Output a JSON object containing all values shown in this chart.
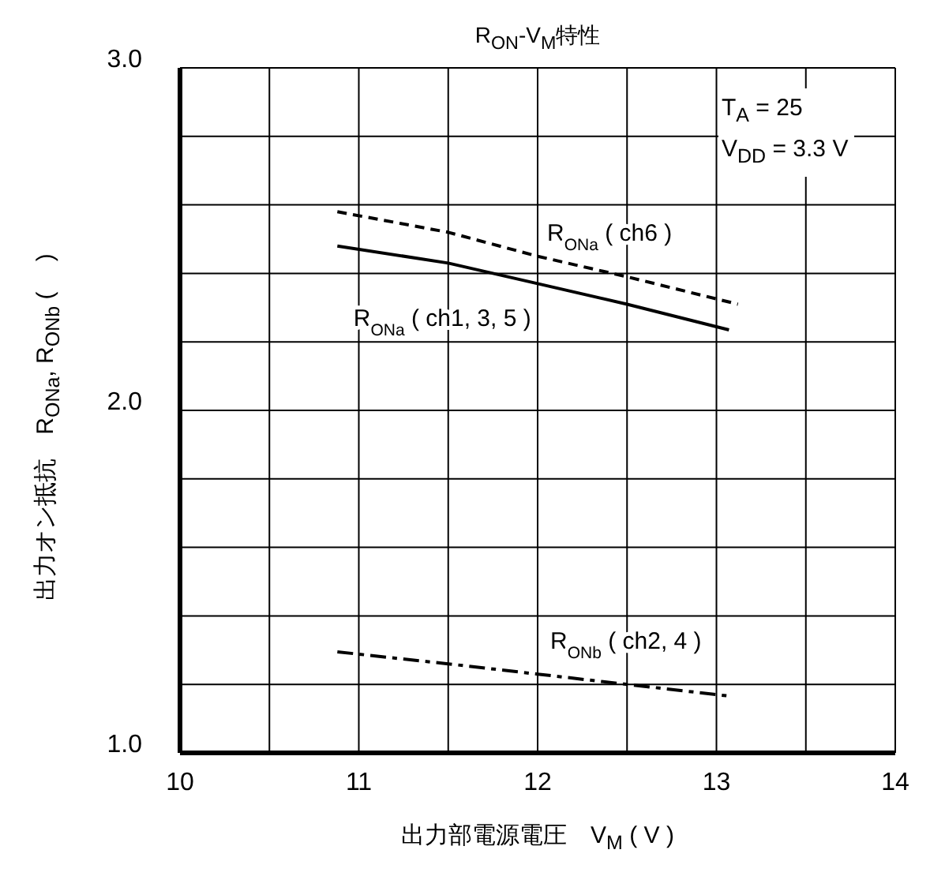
{
  "chart_data": {
    "type": "line",
    "title": "R$_{ON}$-V$_{M}$特性",
    "xlabel": "出力部電源電圧　V$_{M}$ ( V )",
    "ylabel": "出力オン抵抗　R$_{ONa}$, R$_{ONb}$ (　 )",
    "annotations": [
      "T$_{A}$ = 25",
      "V$_{DD}$ = 3.3 V"
    ],
    "xlim": [
      10,
      14
    ],
    "xticks": [
      10,
      {
        "value": 10.5,
        "label": null
      },
      11,
      {
        "value": 11.5,
        "label": null
      },
      12,
      {
        "value": 12.5,
        "label": null
      },
      13,
      {
        "value": 13.5,
        "label": null
      },
      14
    ],
    "ylim": [
      1,
      3
    ],
    "yticks": [
      {
        "value": 1,
        "label": "1.0"
      },
      {
        "value": 1.2,
        "label": null
      },
      {
        "value": 1.4,
        "label": null
      },
      {
        "value": 1.6,
        "label": null
      },
      {
        "value": 1.8,
        "label": null
      },
      {
        "value": 2,
        "label": "2.0"
      },
      {
        "value": 2.2,
        "label": null
      },
      {
        "value": 2.4,
        "label": null
      },
      {
        "value": 2.6,
        "label": null
      },
      {
        "value": 2.8,
        "label": null
      },
      {
        "value": 3,
        "label": "3.0"
      }
    ],
    "grid": true,
    "legend": false,
    "marker": "none",
    "series": [
      {
        "name": "R$_{ONa}$ ( ch1, 3, 5 )",
        "color": "#000000",
        "line_style": "solid",
        "x": [
          10.88,
          11.5,
          12,
          12.5,
          13.07
        ],
        "values": [
          2.48,
          2.43,
          2.37,
          2.31,
          2.235
        ]
      },
      {
        "name": "R$_{ONa}$ ( ch6 )",
        "color": "#000000",
        "line_style": "dashed",
        "x": [
          10.88,
          11.5,
          12,
          12.5,
          13.12
        ],
        "values": [
          2.58,
          2.52,
          2.45,
          2.39,
          2.31
        ]
      },
      {
        "name": "R$_{ONb}$ ( ch2, 4 )",
        "color": "#000000",
        "line_style": "dashdot",
        "x": [
          10.88,
          11.5,
          12,
          12.5,
          13.07
        ],
        "values": [
          1.295,
          1.26,
          1.23,
          1.2,
          1.166
        ]
      }
    ]
  }
}
